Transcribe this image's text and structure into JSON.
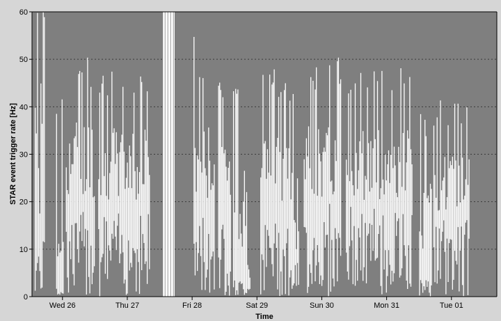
{
  "chart_data": {
    "type": "bar",
    "title": "",
    "xlabel": "Time",
    "ylabel": "STAR event trigger rate [Hz]",
    "ylim": [
      0,
      60
    ],
    "y_ticks": [
      0,
      10,
      20,
      30,
      40,
      50,
      60
    ],
    "x_tick_labels": [
      "Wed 26",
      "Thu 27",
      "Fri 28",
      "Sat 29",
      "Sun 30",
      "Mon 31",
      "Tue 01"
    ],
    "x_range_days": [
      25.53,
      32.7
    ],
    "x_tick_days": [
      26,
      27,
      28,
      29,
      30,
      31,
      32
    ],
    "grid": true,
    "legend": "none",
    "colors": {
      "plot_background": "#7f7f7f",
      "frame_background": "#d6d6d6",
      "series": "#ffffff",
      "gridline": "#3a3a3a",
      "axis": "#000000"
    },
    "series": [
      {
        "segments": [
          {
            "start": 25.57,
            "end": 25.73,
            "peak": [
              58,
              60
            ],
            "typ": [
              14,
              60
            ],
            "low": [
              0,
              12
            ]
          },
          {
            "start": 25.9,
            "end": 26.02,
            "peak": [
              36,
              42
            ],
            "typ": [
              4,
              20
            ],
            "low": [
              0,
              3
            ]
          },
          {
            "start": 26.05,
            "end": 26.5,
            "peak": [
              44,
              53
            ],
            "typ": [
              20,
              38
            ],
            "low": [
              0,
              20
            ]
          },
          {
            "start": 26.55,
            "end": 27.35,
            "peak": [
              42,
              48
            ],
            "typ": [
              20,
              36
            ],
            "low": [
              0,
              20
            ]
          },
          {
            "start": 27.55,
            "end": 27.73,
            "peak": [
              60,
              60
            ],
            "typ": [
              60,
              60
            ],
            "low": [
              0,
              0
            ]
          },
          {
            "start": 28.02,
            "end": 28.35,
            "peak": [
              40,
              56
            ],
            "typ": [
              20,
              36
            ],
            "low": [
              0,
              18
            ]
          },
          {
            "start": 28.4,
            "end": 28.6,
            "peak": [
              42,
              47
            ],
            "typ": [
              20,
              32
            ],
            "low": [
              0,
              18
            ]
          },
          {
            "start": 28.63,
            "end": 28.9,
            "peak": [
              42,
              47
            ],
            "typ": [
              4,
              30
            ],
            "low": [
              0,
              4
            ]
          },
          {
            "start": 29.05,
            "end": 29.5,
            "peak": [
              42,
              48
            ],
            "typ": [
              20,
              36
            ],
            "low": [
              0,
              18
            ]
          },
          {
            "start": 29.5,
            "end": 29.65,
            "peak": [
              40,
              44
            ],
            "typ": [
              10,
              28
            ],
            "low": [
              0,
              8
            ]
          },
          {
            "start": 29.72,
            "end": 30.3,
            "peak": [
              43,
              52
            ],
            "typ": [
              20,
              36
            ],
            "low": [
              0,
              20
            ]
          },
          {
            "start": 30.37,
            "end": 31.4,
            "peak": [
              42,
              49
            ],
            "typ": [
              20,
              36
            ],
            "low": [
              0,
              20
            ]
          },
          {
            "start": 31.5,
            "end": 31.7,
            "peak": [
              32,
              39
            ],
            "typ": [
              6,
              24
            ],
            "low": [
              0,
              4
            ]
          },
          {
            "start": 31.72,
            "end": 32.28,
            "peak": [
              36,
              44
            ],
            "typ": [
              18,
              30
            ],
            "low": [
              0,
              18
            ]
          }
        ]
      }
    ]
  }
}
